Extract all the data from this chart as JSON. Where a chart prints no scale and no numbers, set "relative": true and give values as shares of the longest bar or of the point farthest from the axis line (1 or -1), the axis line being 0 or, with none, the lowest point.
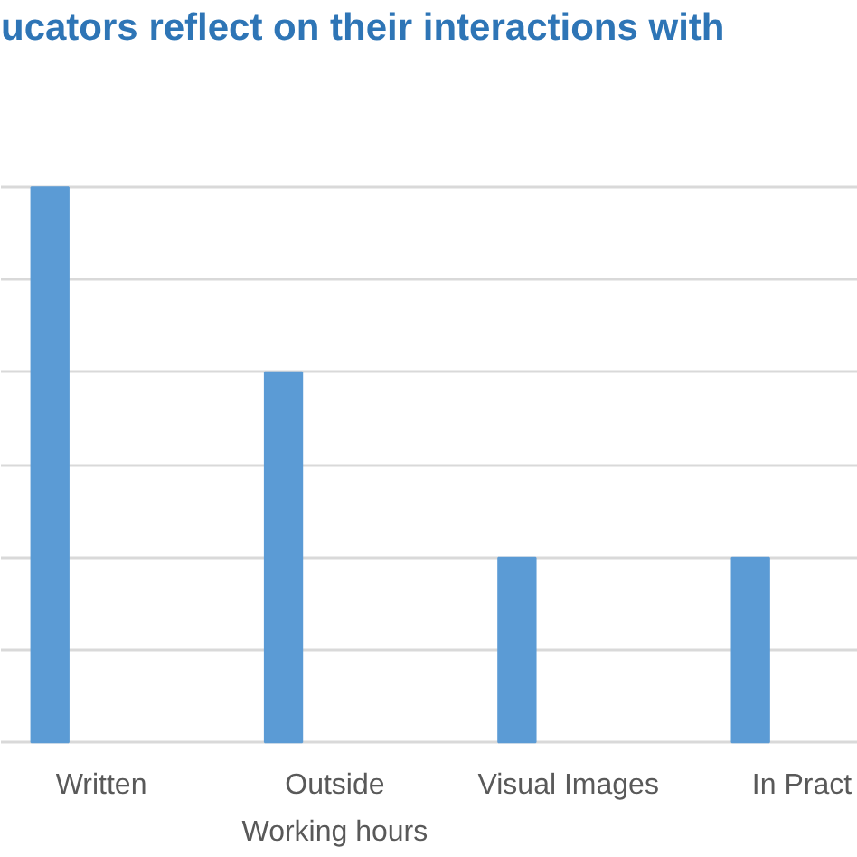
{
  "chart_data": {
    "type": "bar",
    "title": "ucators reflect on their interactions with",
    "categories": [
      "Written",
      "Outside\nWorking hours",
      "Visual Images",
      "In Pract"
    ],
    "values": [
      1,
      0.667,
      0.333,
      0.333
    ],
    "color": "#5b9bd5",
    "relative": true,
    "grid": "y"
  }
}
